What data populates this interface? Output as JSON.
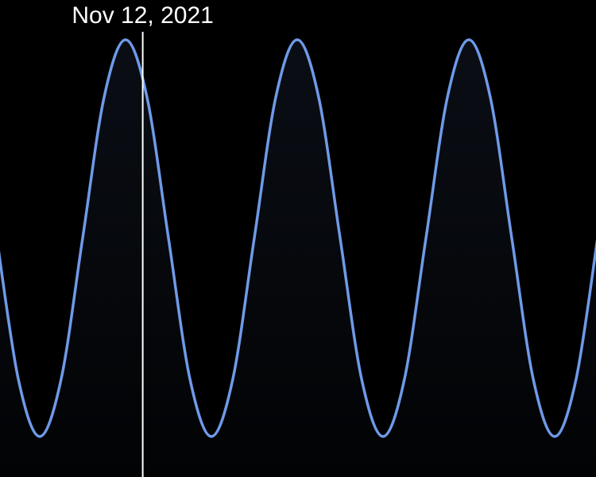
{
  "chart_data": {
    "type": "line",
    "x": [
      0,
      1,
      2,
      3,
      4,
      5,
      6,
      7,
      8,
      9,
      10,
      11,
      12,
      13,
      14,
      15,
      16,
      17,
      18,
      19,
      20,
      21,
      22,
      23,
      24,
      25,
      26,
      27,
      28
    ],
    "series": [
      {
        "color": "#6f9ae8",
        "values": [
          0,
          -0.71,
          -1,
          -0.71,
          0,
          0.71,
          1,
          0.71,
          0,
          -0.71,
          -1,
          -0.71,
          0,
          0.71,
          1,
          0.71,
          0,
          -0.71,
          -1,
          -0.71,
          0,
          0.71,
          1,
          0.71,
          0,
          -0.71,
          -1,
          -0.71,
          0
        ]
      }
    ],
    "xlim": [
      0,
      28
    ],
    "ylim": [
      -1,
      1
    ],
    "cursor_x": 6.8,
    "cursor_label": "Nov 12, 2021"
  }
}
